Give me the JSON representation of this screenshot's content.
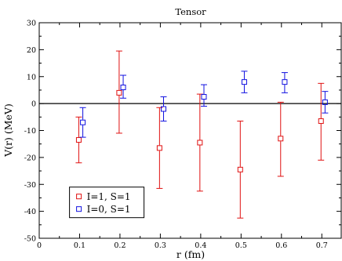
{
  "chart_data": {
    "type": "scatter",
    "title": "Tensor",
    "xlabel": "r (fm)",
    "ylabel": "V(r)  (MeV)",
    "xlim": [
      0,
      0.75
    ],
    "ylim": [
      -50,
      30
    ],
    "x_ticks": [
      0,
      0.1,
      0.2,
      0.3,
      0.4,
      0.5,
      0.6,
      0.7
    ],
    "x_tick_labels": [
      "0",
      "0.1",
      "0.2",
      "0.3",
      "0.4",
      "0.5",
      "0.6",
      "0.7"
    ],
    "y_ticks": [
      -50,
      -40,
      -30,
      -20,
      -10,
      0,
      10,
      20,
      30
    ],
    "y_tick_labels": [
      "-50",
      "-40",
      "-30",
      "-20",
      "-10",
      "0",
      "10",
      "20",
      "30"
    ],
    "zero_line": true,
    "legend_position": "bottom-left",
    "series": [
      {
        "name": "I=1, S=1",
        "color": "#e01010",
        "marker": "square-open",
        "points": [
          {
            "x": 0.098,
            "y": -13.5,
            "err_low": -22.0,
            "err_high": -5.0
          },
          {
            "x": 0.198,
            "y": 4.0,
            "err_low": -11.0,
            "err_high": 19.5
          },
          {
            "x": 0.298,
            "y": -16.5,
            "err_low": -31.5,
            "err_high": -1.5
          },
          {
            "x": 0.398,
            "y": -14.5,
            "err_low": -32.5,
            "err_high": 3.5
          },
          {
            "x": 0.498,
            "y": -24.5,
            "err_low": -42.5,
            "err_high": -6.5
          },
          {
            "x": 0.598,
            "y": -13.0,
            "err_low": -27.0,
            "err_high": 0.5
          },
          {
            "x": 0.698,
            "y": -6.5,
            "err_low": -21.0,
            "err_high": 7.5
          }
        ]
      },
      {
        "name": "I=0, S=1",
        "color": "#1010e0",
        "marker": "square-open",
        "points": [
          {
            "x": 0.108,
            "y": -7.0,
            "err_low": -12.5,
            "err_high": -1.5
          },
          {
            "x": 0.208,
            "y": 6.0,
            "err_low": 2.0,
            "err_high": 10.5
          },
          {
            "x": 0.308,
            "y": -2.0,
            "err_low": -6.5,
            "err_high": 2.5
          },
          {
            "x": 0.408,
            "y": 2.5,
            "err_low": -1.0,
            "err_high": 7.0
          },
          {
            "x": 0.508,
            "y": 8.0,
            "err_low": 4.0,
            "err_high": 12.0
          },
          {
            "x": 0.608,
            "y": 8.0,
            "err_low": 4.0,
            "err_high": 11.5
          },
          {
            "x": 0.708,
            "y": 0.5,
            "err_low": -3.5,
            "err_high": 4.5
          }
        ]
      }
    ]
  }
}
